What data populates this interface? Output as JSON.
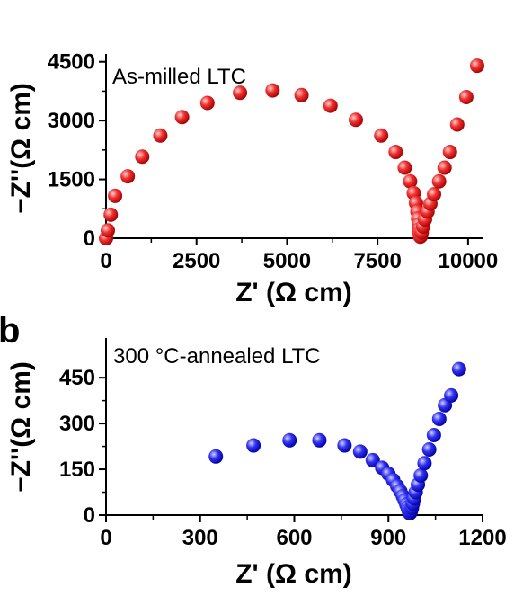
{
  "colors": {
    "panel_a_marker": "#ee1c1c",
    "panel_b_marker": "#1a1aee"
  },
  "chart_data": [
    {
      "type": "scatter",
      "panel_letter": "",
      "annotation": "As-milled LTC",
      "xlabel": "Z' (Ω cm)",
      "ylabel": "−Z''(Ω cm)",
      "xlim": [
        0,
        10400
      ],
      "ylim": [
        0,
        4700
      ],
      "xticks": [
        0,
        2500,
        5000,
        7500,
        10000
      ],
      "yticks": [
        0,
        1500,
        3000,
        4500
      ],
      "xtick_labels": [
        "0",
        "2500",
        "5000",
        "7500",
        "10000"
      ],
      "ytick_labels": [
        "0",
        "1500",
        "3000",
        "4500"
      ],
      "grid": false,
      "marker_color": "red",
      "series": [
        {
          "x": [
            0,
            50,
            130,
            250,
            600,
            1000,
            1500,
            2100,
            2800,
            3700,
            4600,
            5400,
            6200,
            6900,
            7600,
            8000,
            8250,
            8400,
            8500,
            8560,
            8600,
            8620,
            8640,
            8650,
            8660,
            8670,
            8680,
            8700,
            8720,
            8760,
            8810,
            8880,
            8960,
            9060,
            9200,
            9350,
            9500,
            9700,
            9950,
            10250
          ],
          "y": [
            0,
            200,
            600,
            1080,
            1580,
            2080,
            2620,
            3090,
            3450,
            3710,
            3770,
            3650,
            3380,
            3020,
            2620,
            2200,
            1800,
            1450,
            1150,
            900,
            680,
            500,
            350,
            230,
            140,
            80,
            40,
            60,
            150,
            300,
            480,
            680,
            880,
            1120,
            1450,
            1800,
            2200,
            2900,
            3600,
            4400
          ]
        }
      ]
    },
    {
      "type": "scatter",
      "panel_letter": "b",
      "annotation": "300 °C-annealed LTC",
      "xlabel": "Z' (Ω cm)",
      "ylabel": "−Z''(Ω cm)",
      "xlim": [
        0,
        1200
      ],
      "ylim": [
        0,
        580
      ],
      "xticks": [
        0,
        300,
        600,
        900,
        1200
      ],
      "yticks": [
        0,
        150,
        300,
        450
      ],
      "xtick_labels": [
        "0",
        "300",
        "600",
        "900",
        "1200"
      ],
      "ytick_labels": [
        "0",
        "150",
        "300",
        "450"
      ],
      "grid": false,
      "marker_color": "blue",
      "series": [
        {
          "x": [
            350,
            470,
            585,
            680,
            760,
            810,
            850,
            880,
            900,
            915,
            928,
            938,
            946,
            952,
            957,
            961,
            964,
            966,
            968,
            970,
            972,
            975,
            978,
            982,
            987,
            994,
            1003,
            1015,
            1030,
            1045,
            1062,
            1080,
            1100,
            1125
          ],
          "y": [
            192,
            228,
            245,
            245,
            228,
            208,
            180,
            155,
            135,
            115,
            95,
            78,
            62,
            48,
            35,
            25,
            16,
            10,
            6,
            8,
            14,
            24,
            38,
            55,
            75,
            100,
            130,
            170,
            215,
            262,
            315,
            360,
            392,
            478
          ]
        }
      ]
    }
  ]
}
